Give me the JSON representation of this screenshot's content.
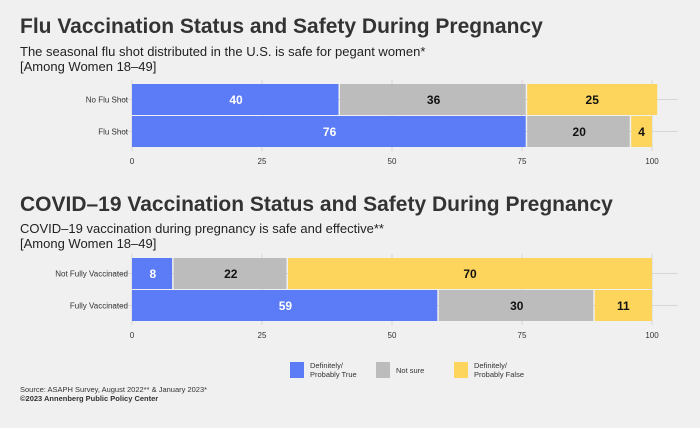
{
  "colors": {
    "true": "#5b7cf6",
    "not_sure": "#bcbcbc",
    "false": "#fed55c",
    "grid": "#d6d6d6"
  },
  "chart_data": [
    {
      "type": "bar",
      "orientation": "horizontal",
      "stacked": true,
      "title": "Flu Vaccination Status and Safety During Pregnancy",
      "subtitle": "The seasonal flu shot distributed in the U.S. is safe for pegant women*",
      "subtitle2": "[Among Women 18–49]",
      "categories": [
        "No Flu Shot",
        "Flu Shot"
      ],
      "series": [
        {
          "name": "Definitely/ Probably True",
          "values": [
            40,
            76
          ]
        },
        {
          "name": "Not sure",
          "values": [
            36,
            20
          ]
        },
        {
          "name": "Definitely/ Probably False",
          "values": [
            25,
            4
          ]
        }
      ],
      "xlim": [
        0,
        100
      ],
      "xticks": [
        0,
        25,
        50,
        75,
        100
      ],
      "grid": true
    },
    {
      "type": "bar",
      "orientation": "horizontal",
      "stacked": true,
      "title": "COVID–19 Vaccination Status and Safety During Pregnancy",
      "subtitle": "COVID–19 vaccination during pregnancy is safe and effective**",
      "subtitle2": "[Among Women 18–49]",
      "categories": [
        "Not Fully Vaccinated",
        "Fully Vaccinated"
      ],
      "series": [
        {
          "name": "Definitely/ Probably True",
          "values": [
            8,
            59
          ]
        },
        {
          "name": "Not sure",
          "values": [
            22,
            30
          ]
        },
        {
          "name": "Definitely/ Probably False",
          "values": [
            70,
            11
          ]
        }
      ],
      "xlim": [
        0,
        100
      ],
      "xticks": [
        0,
        25,
        50,
        75,
        100
      ],
      "grid": true
    }
  ],
  "legend": [
    {
      "line1": "Definitely/",
      "line2": "Probably True"
    },
    {
      "line1": "Not sure",
      "line2": ""
    },
    {
      "line1": "Definitely/",
      "line2": "Probably False"
    }
  ],
  "footer": {
    "source": "Source: ASAPH Survey, August 2022** & January 2023*",
    "copyright": "©2023 Annenberg Public Policy Center"
  }
}
